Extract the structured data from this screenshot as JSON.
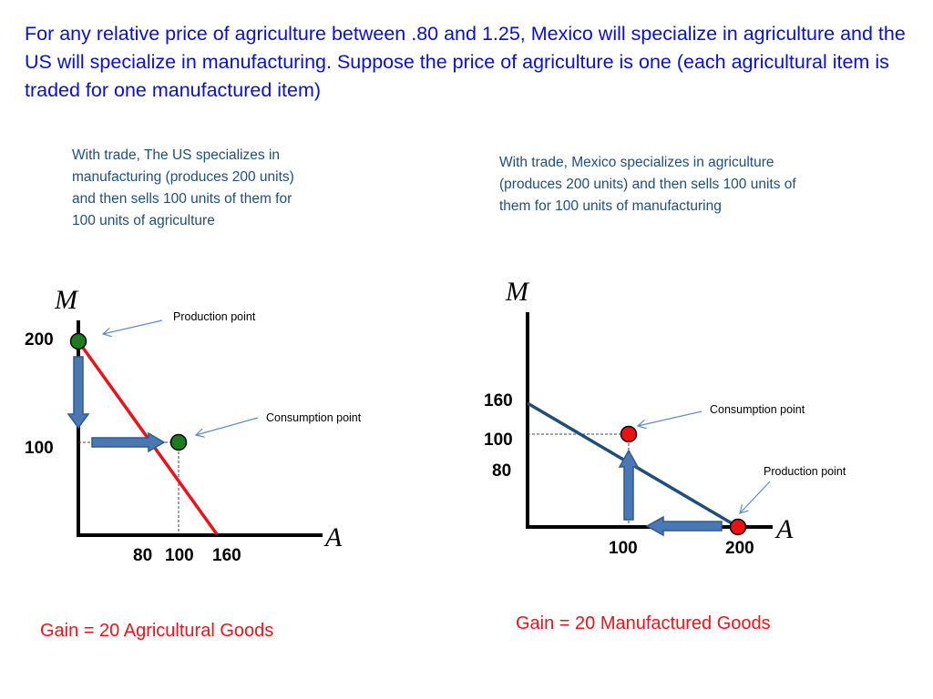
{
  "headline": "For any relative price of agriculture between .80 and 1.25, Mexico will specialize in agriculture and the US will specialize in manufacturing. Suppose the price of agriculture is one (each agricultural item is traded for one manufactured item)",
  "us_panel": {
    "description": "With trade, The US specializes in manufacturing (produces 200 units) and then sells 100 units of them for 100 units of agriculture",
    "y_axis_letter": "M",
    "x_axis_letter": "A",
    "y_ticks": [
      "200",
      "100"
    ],
    "x_ticks": [
      "80",
      "100",
      "160"
    ],
    "production_label": "Production point",
    "consumption_label": "Consumption point",
    "gain": "Gain = 20 Agricultural Goods",
    "line_color": "#e8141c",
    "point_color": "#1e7b1e"
  },
  "mexico_panel": {
    "description": "With trade, Mexico specializes in agriculture (produces 200 units) and then sells 100 units of them for 100 units of manufacturing",
    "y_axis_letter": "M",
    "x_axis_letter": "A",
    "y_ticks": [
      "160",
      "100",
      "80"
    ],
    "x_ticks": [
      "100",
      "200"
    ],
    "production_label": "Production point",
    "consumption_label": "Consumption point",
    "gain": "Gain = 20 Manufactured Goods",
    "line_color": "#1f4e79",
    "point_color": "#ee1111"
  },
  "arrow_color": "#4a78b5"
}
